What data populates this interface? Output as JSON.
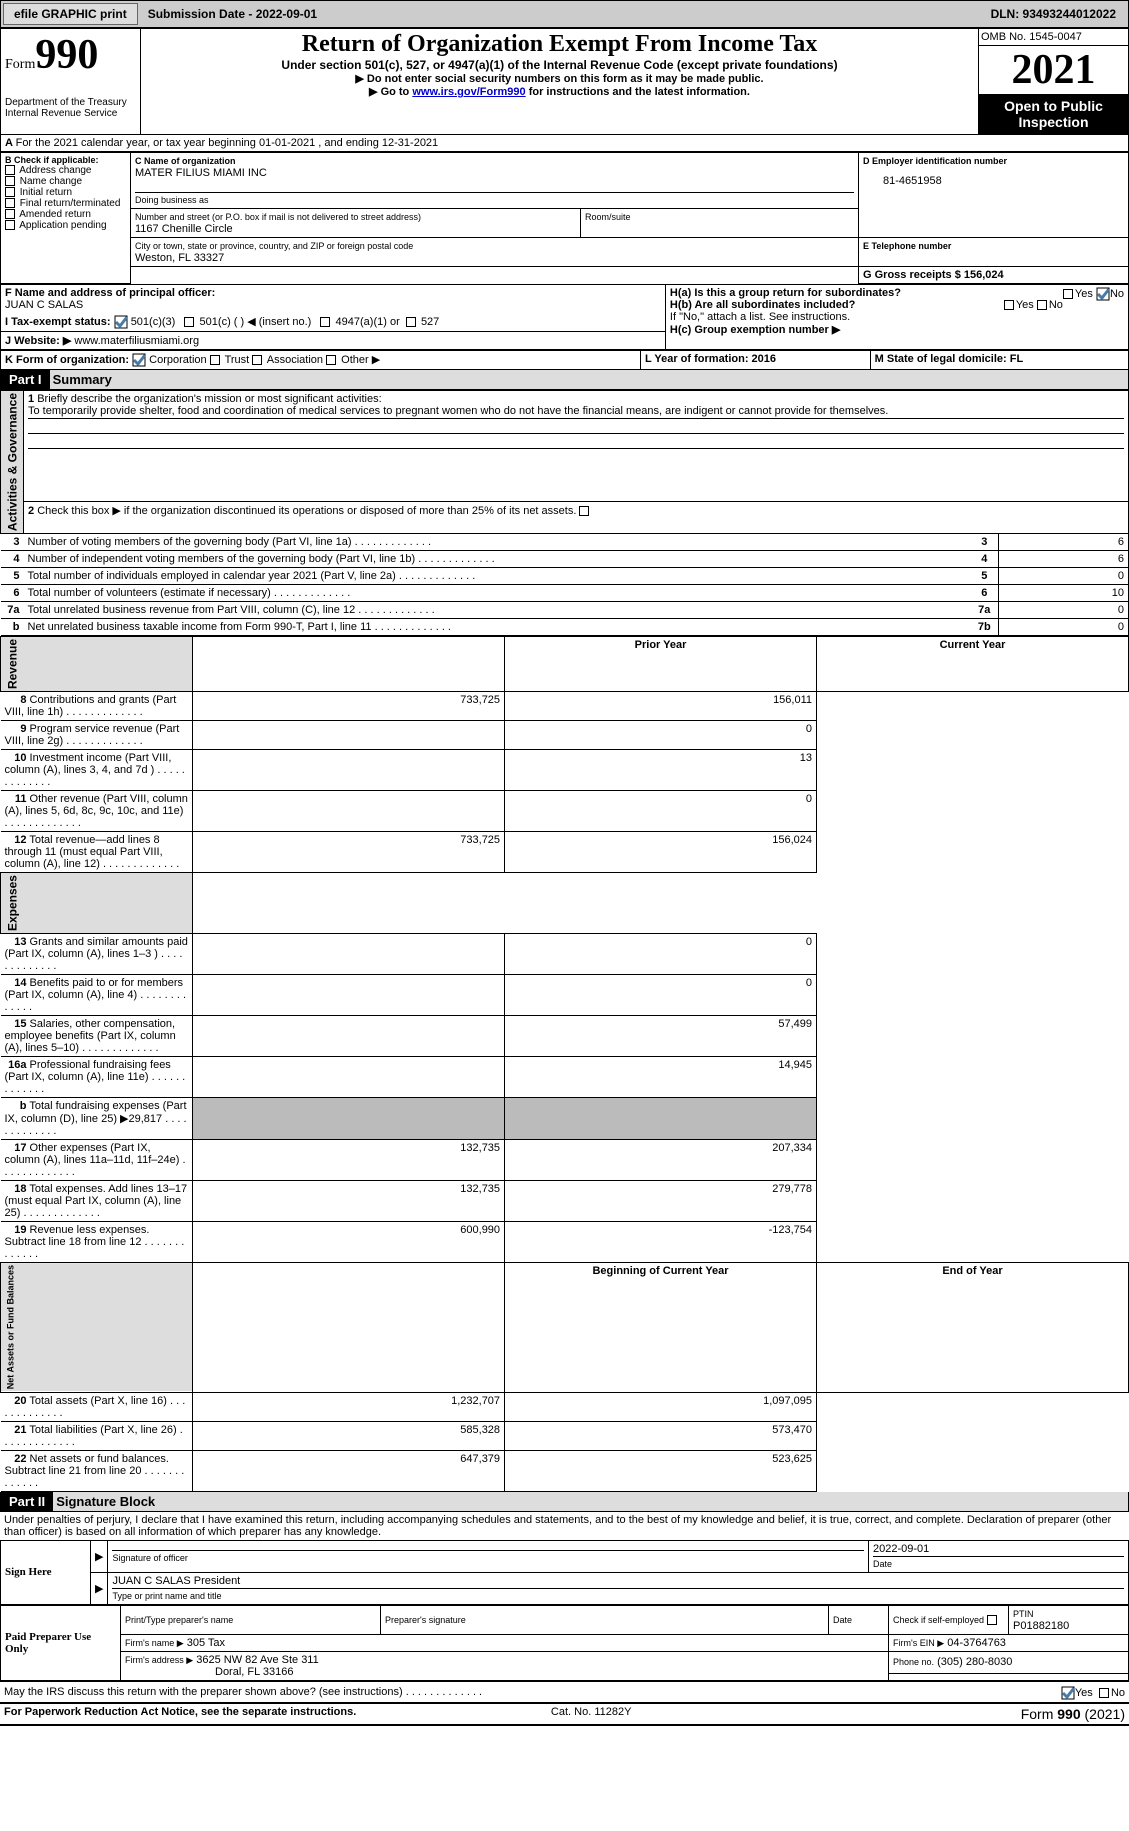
{
  "toolbar": {
    "efile_label": "efile GRAPHIC",
    "print_label": "print",
    "sub_date_label": "Submission Date - 2022-09-01",
    "dln_label": "DLN: 93493244012022"
  },
  "header": {
    "form_label": "Form",
    "form_number": "990",
    "dept": "Department of the Treasury Internal Revenue Service",
    "title": "Return of Organization Exempt From Income Tax",
    "subtitle": "Under section 501(c), 527, or 4947(a)(1) of the Internal Revenue Code (except private foundations)",
    "note1": "▶ Do not enter social security numbers on this form as it may be made public.",
    "note2_pre": "▶ Go to ",
    "note2_link": "www.irs.gov/Form990",
    "note2_post": " for instructions and the latest information.",
    "omb": "OMB No. 1545-0047",
    "year": "2021",
    "open": "Open to Public Inspection"
  },
  "line_a": "For the 2021 calendar year, or tax year beginning 01-01-2021   , and ending 12-31-2021",
  "box_b": {
    "h": "B Check if applicable:",
    "items": [
      "Address change",
      "Name change",
      "Initial return",
      "Final return/terminated",
      "Amended return",
      "Application pending"
    ]
  },
  "box_c": {
    "name_h": "C Name of organization",
    "name": "MATER FILIUS MIAMI INC",
    "dba_h": "Doing business as",
    "addr_h": "Number and street (or P.O. box if mail is not delivered to street address)",
    "addr": "1167 Chenille Circle",
    "room_h": "Room/suite",
    "city_h": "City or town, state or province, country, and ZIP or foreign postal code",
    "city": "Weston, FL  33327"
  },
  "box_d": {
    "h": "D Employer identification number",
    "val": "81-4651958"
  },
  "box_e": {
    "h": "E Telephone number"
  },
  "box_g": "G Gross receipts $ 156,024",
  "officer": {
    "h": "F  Name and address of principal officer:",
    "name": "JUAN C SALAS"
  },
  "box_h": {
    "ha": "H(a)  Is this a group return for subordinates?",
    "hb": "H(b)  Are all subordinates included?",
    "hb_note": "If \"No,\" attach a list. See instructions.",
    "hc": "H(c)  Group exemption number ▶"
  },
  "tax_status": {
    "label": "I  Tax-exempt status:",
    "o1": "501(c)(3)",
    "o2": "501(c) (  ) ◀ (insert no.)",
    "o3": "4947(a)(1) or",
    "o4": "527"
  },
  "website": {
    "label": "J  Website: ▶",
    "val": "  www.materfiliusmiami.org"
  },
  "line_k": {
    "h": "K Form of organization:",
    "opts": [
      "Corporation",
      "Trust",
      "Association",
      "Other ▶"
    ],
    "l_label": "L Year of formation: 2016",
    "m_label": "M State of legal domicile: FL"
  },
  "part1": {
    "num": "Part I",
    "title": "Summary",
    "l1h": "Briefly describe the organization's mission or most significant activities:",
    "l1": "To temporarily provide shelter, food and coordination of medical services to pregnant women who do not have the financial means, are indigent or cannot provide for themselves.",
    "l2": "Check this box ▶        if the organization discontinued its operations or disposed of more than 25% of its net assets.",
    "rows_a": [
      {
        "n": "3",
        "d": "Number of voting members of the governing body (Part VI, line 1a)",
        "box": "3",
        "v": "6"
      },
      {
        "n": "4",
        "d": "Number of independent voting members of the governing body (Part VI, line 1b)",
        "box": "4",
        "v": "6"
      },
      {
        "n": "5",
        "d": "Total number of individuals employed in calendar year 2021 (Part V, line 2a)",
        "box": "5",
        "v": "0"
      },
      {
        "n": "6",
        "d": "Total number of volunteers (estimate if necessary)",
        "box": "6",
        "v": "10"
      },
      {
        "n": "7a",
        "d": "Total unrelated business revenue from Part VIII, column (C), line 12",
        "box": "7a",
        "v": "0"
      },
      {
        "n": "b",
        "d": "Net unrelated business taxable income from Form 990-T, Part I, line 11",
        "box": "7b",
        "v": "0"
      }
    ],
    "col_prior": "Prior Year",
    "col_curr": "Current Year",
    "rows_rev": [
      {
        "n": "8",
        "d": "Contributions and grants (Part VIII, line 1h)",
        "p": "733,725",
        "c": "156,011"
      },
      {
        "n": "9",
        "d": "Program service revenue (Part VIII, line 2g)",
        "p": "",
        "c": "0"
      },
      {
        "n": "10",
        "d": "Investment income (Part VIII, column (A), lines 3, 4, and 7d )",
        "p": "",
        "c": "13"
      },
      {
        "n": "11",
        "d": "Other revenue (Part VIII, column (A), lines 5, 6d, 8c, 9c, 10c, and 11e)",
        "p": "",
        "c": "0"
      },
      {
        "n": "12",
        "d": "Total revenue—add lines 8 through 11 (must equal Part VIII, column (A), line 12)",
        "p": "733,725",
        "c": "156,024"
      }
    ],
    "rows_exp": [
      {
        "n": "13",
        "d": "Grants and similar amounts paid (Part IX, column (A), lines 1–3 )",
        "p": "",
        "c": "0"
      },
      {
        "n": "14",
        "d": "Benefits paid to or for members (Part IX, column (A), line 4)",
        "p": "",
        "c": "0"
      },
      {
        "n": "15",
        "d": "Salaries, other compensation, employee benefits (Part IX, column (A), lines 5–10)",
        "p": "",
        "c": "57,499"
      },
      {
        "n": "16a",
        "d": "Professional fundraising fees (Part IX, column (A), line 11e)",
        "p": "",
        "c": "14,945"
      },
      {
        "n": "b",
        "d": "Total fundraising expenses (Part IX, column (D), line 25) ▶29,817",
        "p": "GRAY",
        "c": "GRAY"
      },
      {
        "n": "17",
        "d": "Other expenses (Part IX, column (A), lines 11a–11d, 11f–24e)",
        "p": "132,735",
        "c": "207,334"
      },
      {
        "n": "18",
        "d": "Total expenses. Add lines 13–17 (must equal Part IX, column (A), line 25)",
        "p": "132,735",
        "c": "279,778"
      },
      {
        "n": "19",
        "d": "Revenue less expenses. Subtract line 18 from line 12",
        "p": "600,990",
        "c": "-123,754"
      }
    ],
    "col_beg": "Beginning of Current Year",
    "col_end": "End of Year",
    "rows_net": [
      {
        "n": "20",
        "d": "Total assets (Part X, line 16)",
        "p": "1,232,707",
        "c": "1,097,095"
      },
      {
        "n": "21",
        "d": "Total liabilities (Part X, line 26)",
        "p": "585,328",
        "c": "573,470"
      },
      {
        "n": "22",
        "d": "Net assets or fund balances. Subtract line 21 from line 20",
        "p": "647,379",
        "c": "523,625"
      }
    ]
  },
  "part2": {
    "num": "Part II",
    "title": "Signature Block",
    "decl": "Under penalties of perjury, I declare that I have examined this return, including accompanying schedules and statements, and to the best of my knowledge and belief, it is true, correct, and complete. Declaration of preparer (other than officer) is based on all information of which preparer has any knowledge.",
    "sign_here": "Sign Here",
    "sig_of_officer": "Signature of officer",
    "sig_date": "2022-09-01",
    "date_h": "Date",
    "name_title": "JUAN C SALAS President",
    "name_title_h": "Type or print name and title",
    "paid": "Paid Preparer Use Only",
    "prep_name_h": "Print/Type preparer's name",
    "prep_sig_h": "Preparer's signature",
    "prep_date_h": "Date",
    "check_self": "Check        if self-employed",
    "ptin_h": "PTIN",
    "ptin": "P01882180",
    "firm_name_h": "Firm's name   ▶",
    "firm_name": "305 Tax",
    "firm_ein_h": "Firm's EIN ▶",
    "firm_ein": "04-3764763",
    "firm_addr_h": "Firm's address ▶",
    "firm_addr": "3625 NW 82 Ave Ste 311",
    "firm_city": "Doral, FL  33166",
    "phone_h": "Phone no.",
    "phone": "(305) 280-8030",
    "discuss": "May the IRS discuss this return with the preparer shown above? (see instructions)"
  },
  "footer": {
    "pra": "For Paperwork Reduction Act Notice, see the separate instructions.",
    "cat": "Cat. No. 11282Y",
    "form": "Form 990 (2021)"
  },
  "yes": "Yes",
  "no": "No",
  "side_labels": {
    "a": "Activities & Governance",
    "r": "Revenue",
    "e": "Expenses",
    "n": "Net Assets or Fund Balances"
  },
  "colors": {
    "toolbar_bg": "#cccccc",
    "checked": "#4a7ba6",
    "header_link": "#0000cc"
  }
}
